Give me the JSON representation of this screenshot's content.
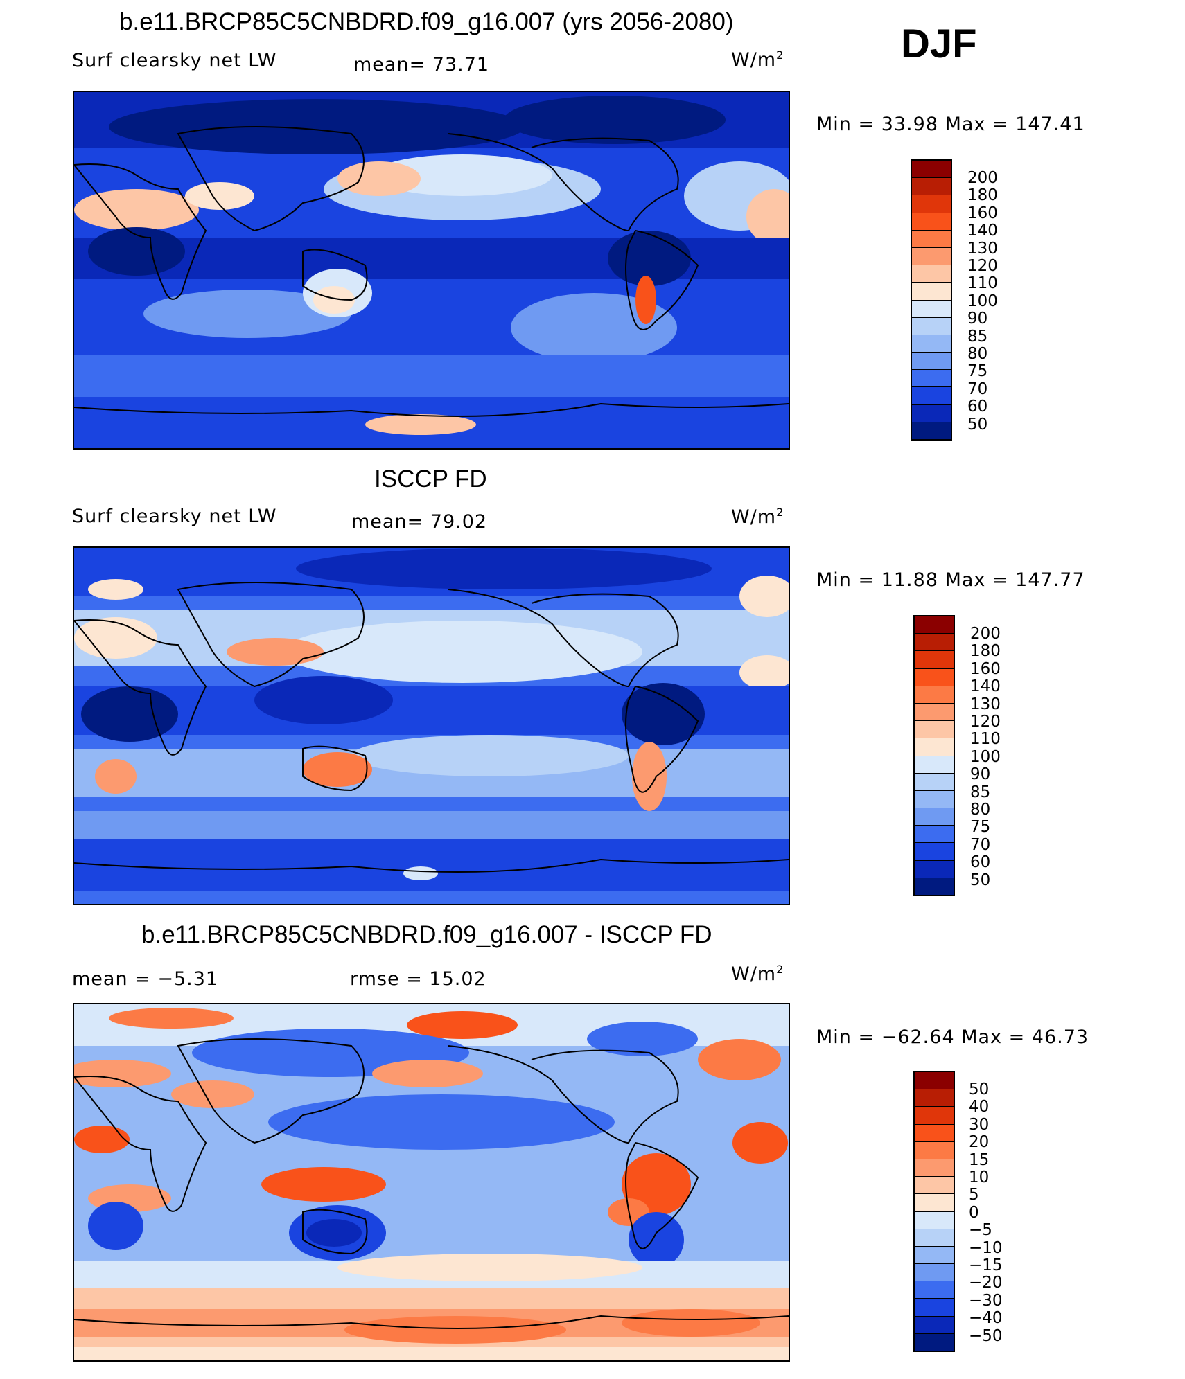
{
  "season": "DJF",
  "units_base": "W/m",
  "units_exp": "2",
  "panels": [
    {
      "id": "model",
      "title": "b.e11.BRCP85C5CNBDRD.f09_g16.007 (yrs 2056-2080)",
      "left_label": "Surf clearsky net LW",
      "mid_label": "mean=  73.71",
      "minmax": "Min =   33.98 Max = 147.41",
      "colorbar_labels": [
        "200",
        "180",
        "160",
        "140",
        "130",
        "120",
        "110",
        "100",
        "90",
        "85",
        "80",
        "75",
        "70",
        "60",
        "50"
      ],
      "colorbar_colors": [
        "#8b0000",
        "#b81e04",
        "#e0360a",
        "#f9521a",
        "#fc7a45",
        "#fc9a6f",
        "#fdc6a6",
        "#fde6d2",
        "#d8e8fa",
        "#b7d2f7",
        "#94b8f5",
        "#6f9af2",
        "#3c6cf0",
        "#1a44e0",
        "#0a28b8",
        "#001a80"
      ]
    },
    {
      "id": "obs",
      "title": "ISCCP FD",
      "left_label": "Surf clearsky net LW",
      "mid_label": "mean=  79.02",
      "minmax": "Min =   11.88 Max = 147.77",
      "colorbar_labels": [
        "200",
        "180",
        "160",
        "140",
        "130",
        "120",
        "110",
        "100",
        "90",
        "85",
        "80",
        "75",
        "70",
        "60",
        "50"
      ],
      "colorbar_colors": [
        "#8b0000",
        "#b81e04",
        "#e0360a",
        "#f9521a",
        "#fc7a45",
        "#fc9a6f",
        "#fdc6a6",
        "#fde6d2",
        "#d8e8fa",
        "#b7d2f7",
        "#94b8f5",
        "#6f9af2",
        "#3c6cf0",
        "#1a44e0",
        "#0a28b8",
        "#001a80"
      ]
    },
    {
      "id": "diff",
      "title": "b.e11.BRCP85C5CNBDRD.f09_g16.007 - ISCCP FD",
      "left_label": "mean =   −5.31",
      "mid_label": "rmse =   15.02",
      "minmax": "Min = −62.64 Max =   46.73",
      "colorbar_labels": [
        "50",
        "40",
        "30",
        "20",
        "15",
        "10",
        "5",
        "0",
        "−5",
        "−10",
        "−15",
        "−20",
        "−30",
        "−40",
        "−50"
      ],
      "colorbar_colors": [
        "#8b0000",
        "#b81e04",
        "#e0360a",
        "#f9521a",
        "#fc7a45",
        "#fc9a6f",
        "#fdc6a6",
        "#fde6d2",
        "#d8e8fa",
        "#b7d2f7",
        "#94b8f5",
        "#6f9af2",
        "#3c6cf0",
        "#1a44e0",
        "#0a28b8",
        "#001a80"
      ]
    }
  ]
}
